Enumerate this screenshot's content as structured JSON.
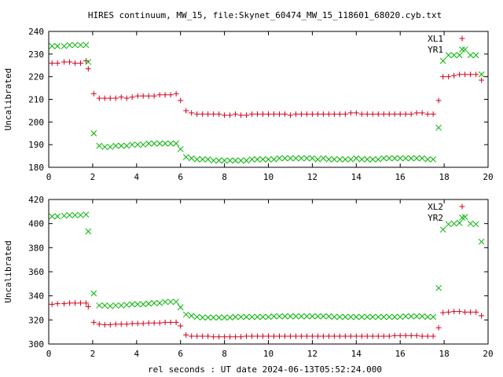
{
  "chart_data": {
    "title": "HIRES continuum, MW_15, file:Skynet_60474_MW_15_118601_68020.cyb.txt",
    "xlabel": "rel seconds : UT date 2024-06-13T05:52:24.000",
    "colors": {
      "plus": "#d0021b",
      "x": "#00b400"
    },
    "panels": [
      {
        "type": "scatter",
        "ylabel": "Uncalibrated",
        "xlim": [
          0,
          20
        ],
        "ylim": [
          180,
          240
        ],
        "xticks": [
          0,
          2,
          4,
          6,
          8,
          10,
          12,
          14,
          16,
          18,
          20
        ],
        "yticks": [
          180,
          190,
          200,
          210,
          220,
          230,
          240
        ],
        "legend_position": "top-right",
        "series": [
          {
            "name": "XL1",
            "marker": "plus",
            "x": [
              0.15,
              0.4,
              0.7,
              0.95,
              1.2,
              1.45,
              1.7,
              1.8,
              2.05,
              2.3,
              2.55,
              2.8,
              3.05,
              3.3,
              3.55,
              3.8,
              4.05,
              4.3,
              4.55,
              4.8,
              5.05,
              5.3,
              5.55,
              5.8,
              6.0,
              6.25,
              6.5,
              6.75,
              7.0,
              7.25,
              7.5,
              7.75,
              8.0,
              8.25,
              8.5,
              8.75,
              9.0,
              9.25,
              9.5,
              9.75,
              10.0,
              10.25,
              10.5,
              10.75,
              11.0,
              11.25,
              11.5,
              11.75,
              12.0,
              12.25,
              12.5,
              12.75,
              13.0,
              13.25,
              13.5,
              13.75,
              14.0,
              14.25,
              14.5,
              14.75,
              15.0,
              15.25,
              15.5,
              15.75,
              16.0,
              16.25,
              16.5,
              16.75,
              17.0,
              17.25,
              17.5,
              17.75,
              17.95,
              18.2,
              18.45,
              18.7,
              18.95,
              19.2,
              19.45,
              19.7
            ],
            "y": [
              226,
              226,
              226.5,
              226.5,
              226,
              226,
              227,
              223.5,
              212.5,
              210.5,
              210.5,
              210.5,
              210.5,
              211,
              210.5,
              211,
              211.5,
              211.5,
              211.5,
              211.5,
              212,
              212,
              212,
              212.5,
              209.5,
              205,
              204,
              203.5,
              203.5,
              203.5,
              203.5,
              203.5,
              203,
              203,
              203.5,
              203,
              203,
              203.5,
              203.5,
              203.5,
              203.5,
              203.5,
              203.5,
              203.5,
              203,
              203.5,
              203.5,
              203.5,
              203.5,
              203.5,
              203.5,
              203.5,
              203.5,
              203.5,
              203.5,
              204,
              204,
              203.5,
              203.5,
              203.5,
              203.5,
              203.5,
              203.5,
              203.5,
              203.5,
              203.5,
              203.5,
              204,
              204,
              203.5,
              203.5,
              209.5,
              220,
              220,
              220.5,
              221,
              221,
              221,
              221,
              218.5
            ]
          },
          {
            "name": "YR1",
            "marker": "x",
            "x": [
              0.15,
              0.4,
              0.7,
              0.95,
              1.2,
              1.45,
              1.7,
              1.8,
              2.05,
              2.3,
              2.55,
              2.8,
              3.05,
              3.3,
              3.55,
              3.8,
              4.05,
              4.3,
              4.55,
              4.8,
              5.05,
              5.3,
              5.55,
              5.8,
              6.0,
              6.25,
              6.5,
              6.75,
              7.0,
              7.25,
              7.5,
              7.75,
              8.0,
              8.25,
              8.5,
              8.75,
              9.0,
              9.25,
              9.5,
              9.75,
              10.0,
              10.25,
              10.5,
              10.75,
              11.0,
              11.25,
              11.5,
              11.75,
              12.0,
              12.25,
              12.5,
              12.75,
              13.0,
              13.25,
              13.5,
              13.75,
              14.0,
              14.25,
              14.5,
              14.75,
              15.0,
              15.25,
              15.5,
              15.75,
              16.0,
              16.25,
              16.5,
              16.75,
              17.0,
              17.25,
              17.5,
              17.75,
              17.95,
              18.2,
              18.45,
              18.7,
              18.95,
              19.2,
              19.45,
              19.7
            ],
            "y": [
              233.5,
              233.5,
              233.5,
              234,
              234,
              234,
              234,
              226.5,
              195,
              189.5,
              189,
              189,
              189.5,
              189.5,
              189.5,
              190,
              190,
              190,
              190.5,
              190.5,
              190.5,
              190.5,
              190.5,
              190.5,
              188,
              184.5,
              184,
              183.5,
              183.5,
              183.5,
              183,
              183,
              183,
              183,
              183,
              183,
              183,
              183.5,
              183.5,
              183.5,
              183.5,
              183.5,
              184,
              184,
              184,
              184,
              184,
              184,
              184,
              183.5,
              184,
              183.5,
              183.5,
              183.5,
              183.5,
              183.5,
              184,
              183.5,
              183.5,
              183.5,
              183.5,
              184,
              184,
              184,
              184,
              184,
              184,
              184,
              184,
              183.5,
              183.5,
              197.5,
              227,
              229.5,
              229.5,
              229.5,
              232,
              229.5,
              229.5,
              221
            ]
          }
        ]
      },
      {
        "type": "scatter",
        "ylabel": "Uncalibrated",
        "xlim": [
          0,
          20
        ],
        "ylim": [
          300,
          420
        ],
        "xticks": [
          0,
          2,
          4,
          6,
          8,
          10,
          12,
          14,
          16,
          18,
          20
        ],
        "yticks": [
          300,
          320,
          340,
          360,
          380,
          400,
          420
        ],
        "legend_position": "top-right",
        "series": [
          {
            "name": "XL2",
            "marker": "plus",
            "x": [
              0.15,
              0.4,
              0.7,
              0.95,
              1.2,
              1.45,
              1.7,
              1.8,
              2.05,
              2.3,
              2.55,
              2.8,
              3.05,
              3.3,
              3.55,
              3.8,
              4.05,
              4.3,
              4.55,
              4.8,
              5.05,
              5.3,
              5.55,
              5.8,
              6.0,
              6.25,
              6.5,
              6.75,
              7.0,
              7.25,
              7.5,
              7.75,
              8.0,
              8.25,
              8.5,
              8.75,
              9.0,
              9.25,
              9.5,
              9.75,
              10.0,
              10.25,
              10.5,
              10.75,
              11.0,
              11.25,
              11.5,
              11.75,
              12.0,
              12.25,
              12.5,
              12.75,
              13.0,
              13.25,
              13.5,
              13.75,
              14.0,
              14.25,
              14.5,
              14.75,
              15.0,
              15.25,
              15.5,
              15.75,
              16.0,
              16.25,
              16.5,
              16.75,
              17.0,
              17.25,
              17.5,
              17.75,
              17.95,
              18.2,
              18.45,
              18.7,
              18.95,
              19.2,
              19.45,
              19.7
            ],
            "y": [
              333,
              333.5,
              333.5,
              334,
              334,
              334,
              334,
              331,
              318,
              316.5,
              316,
              316,
              316.5,
              316.5,
              316.5,
              317,
              317,
              317,
              317.5,
              317.5,
              317.5,
              318,
              318,
              318,
              315,
              307.5,
              306.5,
              306.5,
              306.5,
              306.5,
              306,
              306,
              306,
              306,
              306,
              306,
              306.5,
              306.5,
              306.5,
              306.5,
              306.5,
              306.5,
              306.5,
              306.5,
              306.5,
              306.5,
              306.5,
              306.5,
              306.5,
              306.5,
              306.5,
              306.5,
              306.5,
              306.5,
              306.5,
              306.5,
              306.5,
              306.5,
              306.5,
              306.5,
              306.5,
              306.5,
              306.5,
              307,
              307,
              307,
              307,
              307,
              306.5,
              306.5,
              306.5,
              313.5,
              326,
              326.5,
              327,
              327,
              326.5,
              326.5,
              326.5,
              323.5
            ]
          },
          {
            "name": "YR2",
            "marker": "x",
            "x": [
              0.15,
              0.4,
              0.7,
              0.95,
              1.2,
              1.45,
              1.7,
              1.8,
              2.05,
              2.3,
              2.55,
              2.8,
              3.05,
              3.3,
              3.55,
              3.8,
              4.05,
              4.3,
              4.55,
              4.8,
              5.05,
              5.3,
              5.55,
              5.8,
              6.0,
              6.25,
              6.5,
              6.75,
              7.0,
              7.25,
              7.5,
              7.75,
              8.0,
              8.25,
              8.5,
              8.75,
              9.0,
              9.25,
              9.5,
              9.75,
              10.0,
              10.25,
              10.5,
              10.75,
              11.0,
              11.25,
              11.5,
              11.75,
              12.0,
              12.25,
              12.5,
              12.75,
              13.0,
              13.25,
              13.5,
              13.75,
              14.0,
              14.25,
              14.5,
              14.75,
              15.0,
              15.25,
              15.5,
              15.75,
              16.0,
              16.25,
              16.5,
              16.75,
              17.0,
              17.25,
              17.5,
              17.75,
              17.95,
              18.2,
              18.45,
              18.7,
              18.95,
              19.2,
              19.45,
              19.7
            ],
            "y": [
              406,
              406,
              406.5,
              407,
              407,
              407,
              407.5,
              393.5,
              342,
              332,
              332,
              331.5,
              332,
              332,
              332.5,
              333,
              333,
              333,
              333.5,
              334,
              334,
              335,
              335,
              335,
              330.5,
              324.5,
              323.5,
              322.5,
              322,
              322,
              322,
              322,
              322,
              322,
              322.5,
              322.5,
              322.5,
              322.5,
              322.5,
              322.5,
              322.5,
              323,
              323,
              323,
              323,
              323,
              323,
              323,
              323,
              323,
              323,
              323,
              322.5,
              322.5,
              322.5,
              322.5,
              322.5,
              322.5,
              322.5,
              322.5,
              322.5,
              322.5,
              322.5,
              322.5,
              322.5,
              323,
              323,
              323,
              323,
              322.5,
              322.5,
              346.5,
              395,
              399.5,
              400,
              400.5,
              405.5,
              400,
              399.5,
              385
            ]
          }
        ]
      }
    ]
  }
}
